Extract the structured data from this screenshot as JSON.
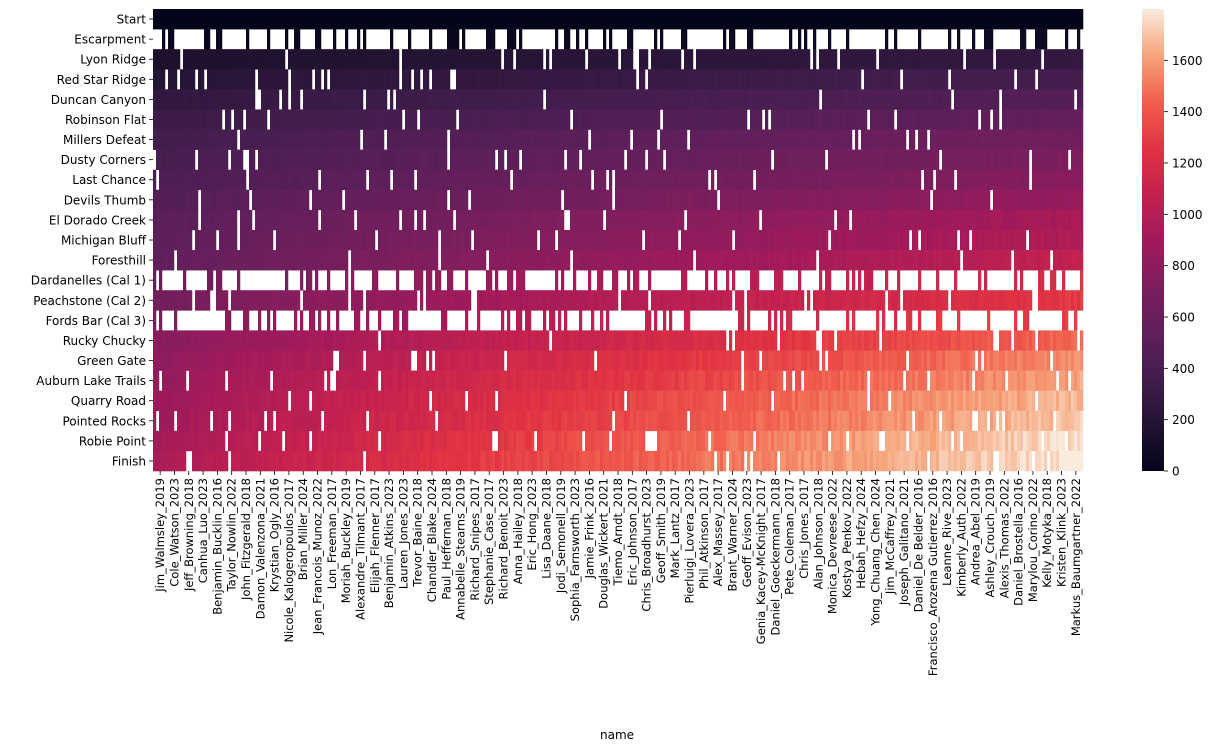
{
  "chart_data": {
    "type": "heatmap",
    "title": "",
    "xlabel": "name",
    "ylabel": "",
    "y_categories": [
      "Start",
      "Escarpment",
      "Lyon Ridge",
      "Red Star Ridge",
      "Duncan Canyon",
      "Robinson Flat",
      "Millers Defeat",
      "Dusty Corners",
      "Last Chance",
      "Devils Thumb",
      "El Dorado Creek",
      "Michigan Bluff",
      "Foresthill",
      "Dardanelles (Cal 1)",
      "Peachstone (Cal 2)",
      "Fords Bar (Cal 3)",
      "Rucky Chucky",
      "Green Gate",
      "Auburn Lake Trails",
      "Quarry Road",
      "Pointed Rocks",
      "Robie Point",
      "Finish"
    ],
    "x_tick_labels": [
      "Jim_Walmsley_2019",
      "Cole_Watson_2023",
      "Jeff_Browning_2018",
      "Canhua_Luo_2023",
      "Benjamin_Bucklin_2016",
      "Taylor_Nowlin_2022",
      "John_Fitzgerald_2018",
      "Damon_Valenzona_2021",
      "Krystian_Ogly_2016",
      "Nicole_Kalogeropoulos_2017",
      "Brian_Miller_2024",
      "Jean_Francois_Munoz_2022",
      "Lon_Freeman_2017",
      "Moriah_Buckley_2019",
      "Alexandre_Tilmant_2017",
      "Elijah_Flenner_2017",
      "Benjamin_Atkins_2023",
      "Lauren_Jones_2023",
      "Trevor_Baine_2018",
      "Chandler_Blake_2024",
      "Paul_Heffernan_2018",
      "Annabelle_Stearns_2019",
      "Richard_Snipes_2017",
      "Stephanie_Case_2017",
      "Richard_Benoit_2023",
      "Anna_Hailey_2018",
      "Eric_Hong_2023",
      "Lisa_Daane_2018",
      "Jodi_Semonell_2019",
      "Sophia_Farnsworth_2023",
      "Jamie_Frink_2016",
      "Douglas_Wickert_2021",
      "Tiemo_Arndt_2018",
      "Eric_Johnson_2017",
      "Chris_Broadhurst_2023",
      "Geoff_Smith_2019",
      "Mark_Lantz_2017",
      "Pierluigi_Lovera_2023",
      "Phil_Atkinson_2017",
      "Alex_Massey_2017",
      "Brant_Warner_2024",
      "Geoff_Evison_2023",
      "Genia_Kacey-McKnight_2017",
      "Daniel_Goeckermann_2018",
      "Pete_Coleman_2017",
      "Chris_Jones_2017",
      "Alan_Johnson_2018",
      "Monica_Devreese_2022",
      "Kostya_Penkov_2022",
      "Hebah_Hefzy_2024",
      "Yong_Chuang_Chen_2024",
      "Jim_McCaffrey_2021",
      "Joseph_Galitano_2021",
      "Daniel_De Belder_2016",
      "Francisco_Arozena Gutierrez_2016",
      "Leanne_Rive_2023",
      "Kimberly_Auth_2022",
      "Andrea_Abel_2019",
      "Ashley_Crouch_2019",
      "Alexis_Thomas_2022",
      "Daniel_Brostella_2016",
      "Marylou_Corino_2022",
      "Kelly_Motyka_2018",
      "Kristen_Klink_2023",
      "Markus_Baumgartner_2022"
    ],
    "n_columns": 1300,
    "colorbar": {
      "min": 0,
      "max": 1800,
      "ticks": [
        0,
        200,
        400,
        600,
        800,
        1000,
        1200,
        1400,
        1600
      ],
      "colormap": "rocket"
    },
    "cumulative_minutes_first_runner": [
      0,
      23,
      145,
      200,
      265,
      320,
      365,
      395,
      430,
      465,
      500,
      525,
      540,
      590,
      640,
      700,
      760,
      800,
      830,
      855,
      870,
      900,
      930
    ],
    "cumulative_minutes_last_runner": [
      0,
      70,
      280,
      390,
      475,
      560,
      650,
      705,
      765,
      840,
      940,
      980,
      1070,
      1220,
      1280,
      1340,
      1460,
      1560,
      1620,
      1680,
      1710,
      1775,
      1795
    ],
    "missing_value_rows": [
      "Escarpment",
      "Dardanelles (Cal 1)",
      "Fords Bar (Cal 3)"
    ],
    "grid": false,
    "legend": "colorbar-right"
  }
}
